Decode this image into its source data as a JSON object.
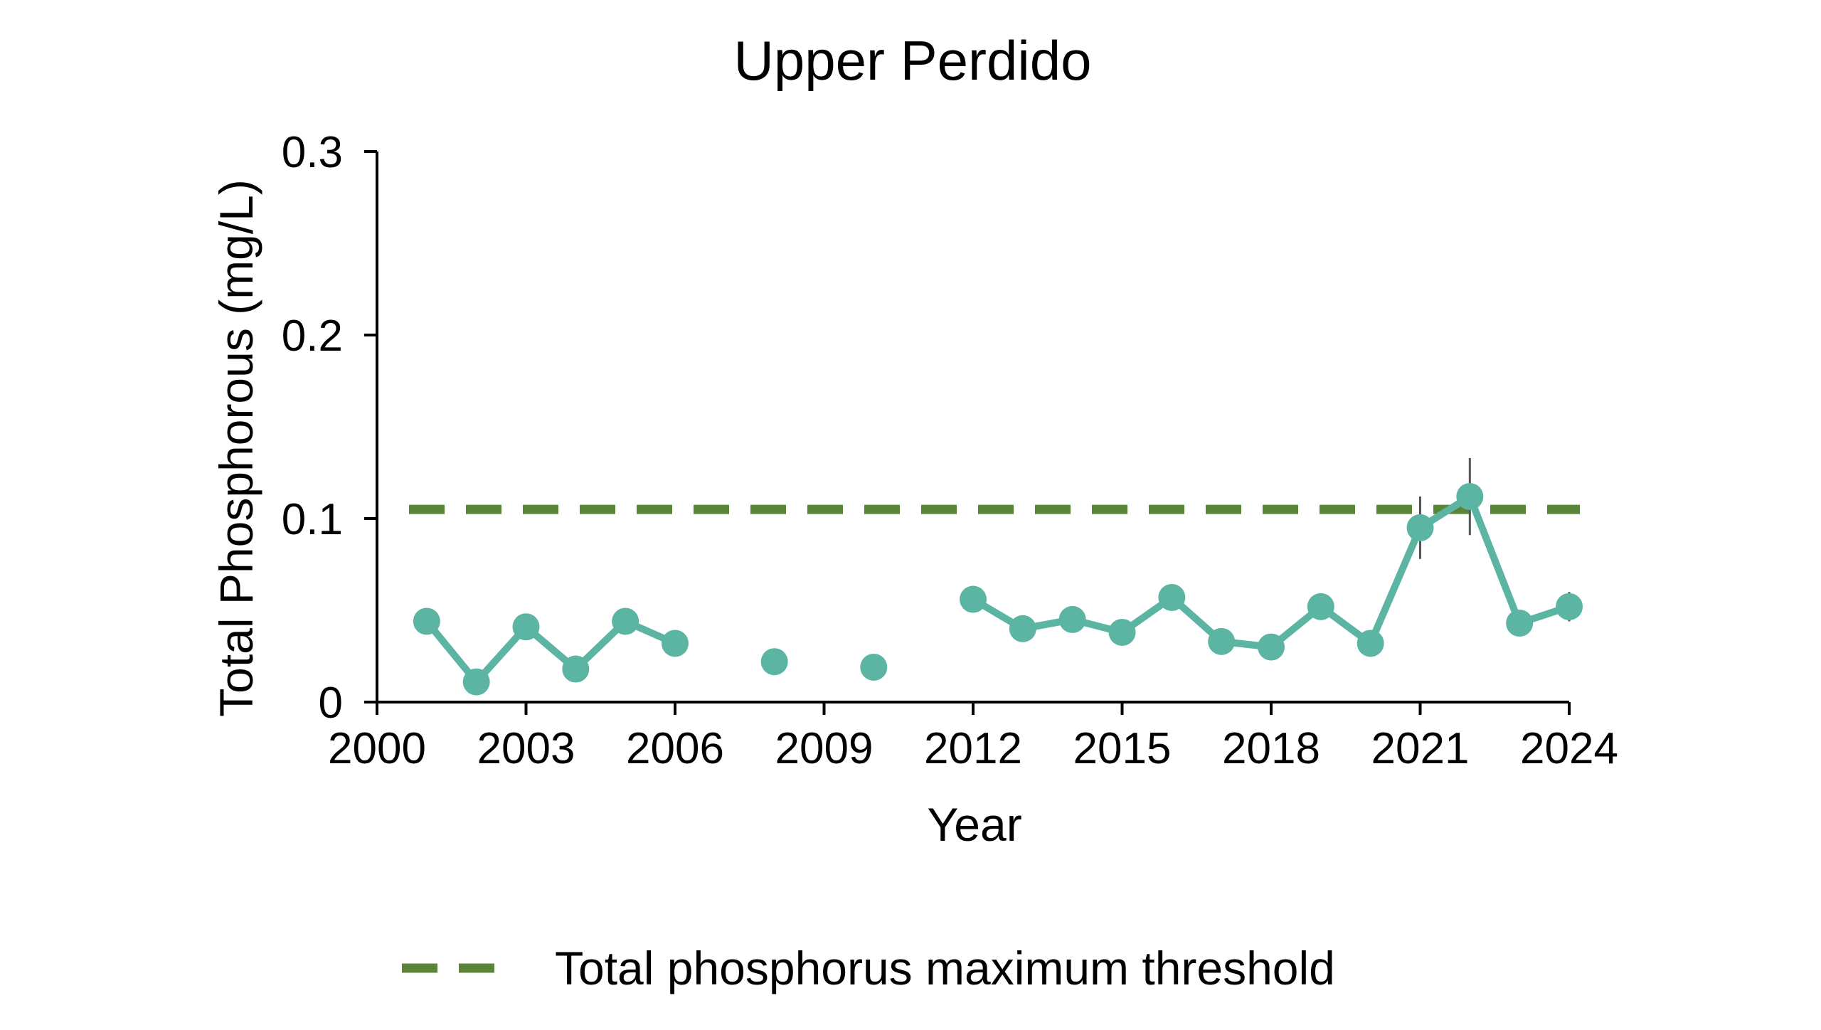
{
  "chart_data": {
    "type": "line",
    "title": "Upper Perdido",
    "xlabel": "Year",
    "ylabel": "Total Phosphorous (mg/L)",
    "xlim": [
      2000,
      2024
    ],
    "ylim": [
      0,
      0.3
    ],
    "x_ticks": [
      2000,
      2003,
      2006,
      2009,
      2012,
      2015,
      2018,
      2021,
      2024
    ],
    "x_tick_labels": [
      "2000",
      "2003",
      "2006",
      "2009",
      "2012",
      "2015",
      "2018",
      "2021",
      "2024"
    ],
    "y_ticks": [
      0,
      0.1,
      0.2,
      0.3
    ],
    "y_tick_labels": [
      "0",
      "0.1",
      "0.2",
      "0.3"
    ],
    "grid": false,
    "series": [
      {
        "color": "#5bb5a2",
        "points": [
          {
            "x": 2001,
            "y": 0.044
          },
          {
            "x": 2002,
            "y": 0.011
          },
          {
            "x": 2003,
            "y": 0.041
          },
          {
            "x": 2004,
            "y": 0.018
          },
          {
            "x": 2005,
            "y": 0.044
          },
          {
            "x": 2006,
            "y": 0.032
          },
          {
            "x": 2008,
            "y": 0.022
          },
          {
            "x": 2010,
            "y": 0.019
          },
          {
            "x": 2012,
            "y": 0.056
          },
          {
            "x": 2013,
            "y": 0.04
          },
          {
            "x": 2014,
            "y": 0.045
          },
          {
            "x": 2015,
            "y": 0.038
          },
          {
            "x": 2016,
            "y": 0.057
          },
          {
            "x": 2017,
            "y": 0.033
          },
          {
            "x": 2018,
            "y": 0.03
          },
          {
            "x": 2019,
            "y": 0.052
          },
          {
            "x": 2020,
            "y": 0.032
          },
          {
            "x": 2021,
            "y": 0.095,
            "err": 0.017
          },
          {
            "x": 2022,
            "y": 0.112,
            "err": 0.021
          },
          {
            "x": 2023,
            "y": 0.043
          },
          {
            "x": 2024,
            "y": 0.052,
            "err": 0.008
          }
        ]
      }
    ],
    "threshold": {
      "name": "Total phosphorus maximum threshold",
      "y": 0.105,
      "color": "#5a8538",
      "style": "dashed"
    },
    "legend": {
      "placement": "bottom-center",
      "entries": [
        "Total phosphorus maximum threshold"
      ]
    }
  }
}
